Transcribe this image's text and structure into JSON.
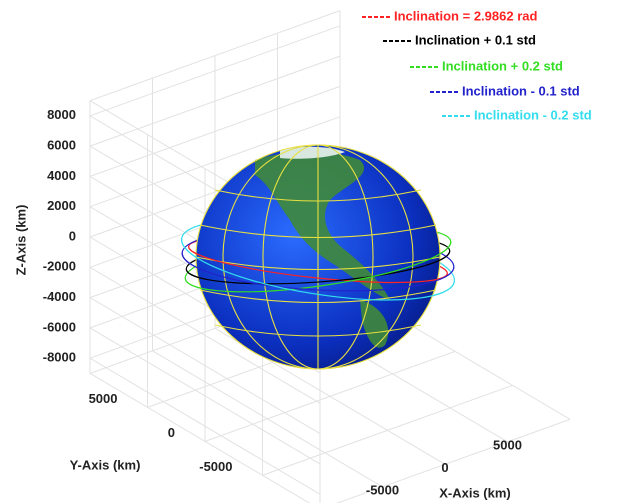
{
  "chart_data": {
    "type": "orbit3d",
    "series": [
      {
        "name": "Inclination = 2.9862 rad",
        "color": "#ff2222"
      },
      {
        "name": "Inclination + 0.1 std",
        "color": "#000000"
      },
      {
        "name": "Inclination + 0.2 std",
        "color": "#33dd22"
      },
      {
        "name": "Inclination - 0.1 std",
        "color": "#2222cc"
      },
      {
        "name": "Inclination - 0.2 std",
        "color": "#33ddee"
      }
    ],
    "xlabel": "X-Axis (km)",
    "ylabel": "Y-Axis (km)",
    "zlabel": "Z-Axis (km)",
    "xlim": [
      -10000,
      10000
    ],
    "ylim": [
      -10000,
      10000
    ],
    "zlim": [
      -9000,
      9000
    ],
    "xticks": [
      -5000,
      0,
      5000
    ],
    "yticks": [
      -5000,
      0,
      5000
    ],
    "zticks": [
      -8000,
      -6000,
      -4000,
      -2000,
      0,
      2000,
      4000,
      6000,
      8000
    ],
    "grid": true
  }
}
